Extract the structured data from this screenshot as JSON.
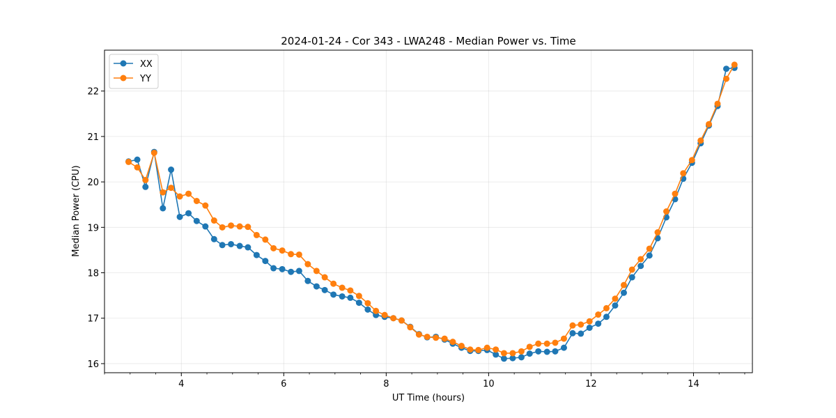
{
  "chart_data": {
    "type": "line",
    "title": "2024-01-24 - Cor 343 - LWA248 - Median Power vs. Time",
    "xlabel": "UT Time (hours)",
    "ylabel": "Median Power (CPU)",
    "xlim": [
      2.5,
      15.15
    ],
    "ylim": [
      15.8,
      22.9
    ],
    "xticks": [
      4,
      6,
      8,
      10,
      12,
      14
    ],
    "yticks": [
      16,
      17,
      18,
      19,
      20,
      21,
      22
    ],
    "grid": true,
    "legend_position": "top-left",
    "x": [
      2.97,
      3.14,
      3.3,
      3.47,
      3.64,
      3.8,
      3.97,
      4.14,
      4.3,
      4.47,
      4.64,
      4.8,
      4.97,
      5.14,
      5.3,
      5.47,
      5.64,
      5.8,
      5.97,
      6.14,
      6.3,
      6.47,
      6.64,
      6.8,
      6.97,
      7.14,
      7.3,
      7.47,
      7.64,
      7.8,
      7.97,
      8.14,
      8.3,
      8.47,
      8.64,
      8.8,
      8.97,
      9.14,
      9.3,
      9.47,
      9.64,
      9.8,
      9.97,
      10.14,
      10.3,
      10.47,
      10.64,
      10.8,
      10.97,
      11.14,
      11.3,
      11.47,
      11.64,
      11.8,
      11.97,
      12.14,
      12.3,
      12.47,
      12.64,
      12.8,
      12.97,
      13.14,
      13.3,
      13.47,
      13.64,
      13.8,
      13.97,
      14.14,
      14.3,
      14.47,
      14.64,
      14.8
    ],
    "series": [
      {
        "name": "XX",
        "color": "#1f77b4",
        "values": [
          20.45,
          20.49,
          19.89,
          20.66,
          19.42,
          20.27,
          19.23,
          19.31,
          19.14,
          19.02,
          18.74,
          18.61,
          18.63,
          18.59,
          18.56,
          18.39,
          18.26,
          18.1,
          18.08,
          18.02,
          18.04,
          17.82,
          17.7,
          17.62,
          17.52,
          17.48,
          17.45,
          17.34,
          17.19,
          17.07,
          17.03,
          17.0,
          16.95,
          16.81,
          16.65,
          16.58,
          16.59,
          16.53,
          16.44,
          16.35,
          16.28,
          16.28,
          16.3,
          16.2,
          16.11,
          16.12,
          16.14,
          16.22,
          16.27,
          16.26,
          16.27,
          16.35,
          16.67,
          16.66,
          16.79,
          16.88,
          17.03,
          17.28,
          17.56,
          17.9,
          18.15,
          18.38,
          18.76,
          19.22,
          19.62,
          20.07,
          20.42,
          20.85,
          21.24,
          21.67,
          22.49,
          22.51
        ]
      },
      {
        "name": "YY",
        "color": "#ff7f0e",
        "values": [
          20.44,
          20.32,
          20.04,
          20.64,
          19.77,
          19.87,
          19.68,
          19.74,
          19.58,
          19.48,
          19.15,
          19.0,
          19.04,
          19.02,
          19.01,
          18.83,
          18.73,
          18.54,
          18.49,
          18.41,
          18.4,
          18.19,
          18.04,
          17.9,
          17.76,
          17.67,
          17.61,
          17.49,
          17.33,
          17.16,
          17.07,
          17.0,
          16.95,
          16.8,
          16.64,
          16.59,
          16.57,
          16.55,
          16.48,
          16.39,
          16.31,
          16.3,
          16.35,
          16.31,
          16.23,
          16.23,
          16.27,
          16.37,
          16.44,
          16.44,
          16.46,
          16.55,
          16.84,
          16.86,
          16.93,
          17.08,
          17.22,
          17.43,
          17.73,
          18.07,
          18.3,
          18.53,
          18.89,
          19.35,
          19.74,
          20.19,
          20.48,
          20.91,
          21.27,
          21.72,
          22.27,
          22.58
        ]
      }
    ]
  }
}
